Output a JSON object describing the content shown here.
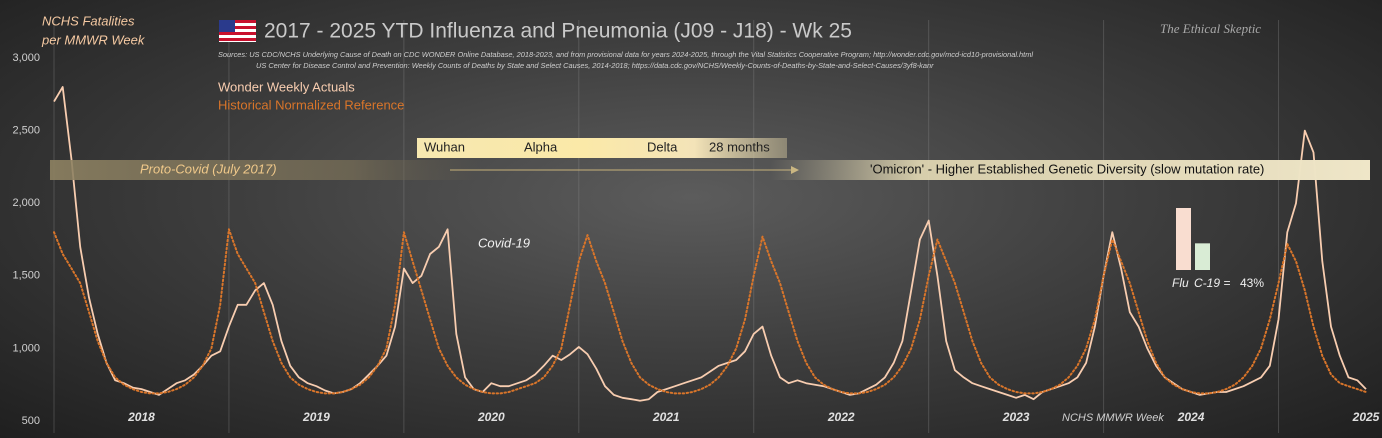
{
  "chart_data": [
    {
      "type": "line",
      "title": "2017 - 2025 YTD Influenza and Pneumonia (J09 - J18) - Wk 25",
      "subtitle": [
        "Sources:   US CDC/NCHS Underlying  Cause of Death on CDC WONDER Online Database, 2018-2023, and from provisional data for years 2024-2025, through the Vital Statistics Cooperative Program; http://wonder.cdc.gov/mcd-icd10-provisional.html",
        "US Center for Disease Control and Prevention:  Weekly  Counts of Deaths by State and Select Causes, 2014-2018; https://data.cdc.gov/NCHS/Weekly-Counts-of-Deaths-by-State-and-Select-Causes/3yf8-kanr"
      ],
      "ylabel": [
        "NCHS Fatalities",
        "per MMWR Week"
      ],
      "xlabel": "NCHS MMWR Week",
      "watermark": "The Ethical Skeptic",
      "annotations": [
        "Proto-Covid (July 2017)",
        "Wuhan",
        "Alpha",
        "Delta",
        "28 months",
        "'Omicron' - Higher Established Genetic Diversity (slow mutation rate)",
        "Covid-19"
      ],
      "x": [
        2018,
        2018.05,
        2018.1,
        2018.15,
        2018.2,
        2018.25,
        2018.3,
        2018.35,
        2018.4,
        2018.45,
        2018.5,
        2018.55,
        2018.6,
        2018.65,
        2018.7,
        2018.75,
        2018.8,
        2018.85,
        2018.9,
        2018.95,
        2019,
        2019.05,
        2019.1,
        2019.15,
        2019.2,
        2019.25,
        2019.3,
        2019.35,
        2019.4,
        2019.45,
        2019.5,
        2019.55,
        2019.6,
        2019.65,
        2019.7,
        2019.75,
        2019.8,
        2019.85,
        2019.9,
        2019.95,
        2020,
        2020.05,
        2020.1,
        2020.15,
        2020.2,
        2020.25,
        2020.3,
        2020.35,
        2020.4,
        2020.45,
        2020.5,
        2020.55,
        2020.6,
        2020.65,
        2020.7,
        2020.75,
        2020.8,
        2020.85,
        2020.9,
        2020.95,
        2021,
        2021.05,
        2021.1,
        2021.15,
        2021.2,
        2021.25,
        2021.3,
        2021.35,
        2021.4,
        2021.45,
        2021.5,
        2021.55,
        2021.6,
        2021.65,
        2021.7,
        2021.75,
        2021.8,
        2021.85,
        2021.9,
        2021.95,
        2022,
        2022.05,
        2022.1,
        2022.15,
        2022.2,
        2022.25,
        2022.3,
        2022.35,
        2022.4,
        2022.45,
        2022.5,
        2022.55,
        2022.6,
        2022.65,
        2022.7,
        2022.75,
        2022.8,
        2022.85,
        2022.9,
        2022.95,
        2023,
        2023.05,
        2023.1,
        2023.15,
        2023.2,
        2023.25,
        2023.3,
        2023.35,
        2023.4,
        2023.45,
        2023.5,
        2023.55,
        2023.6,
        2023.65,
        2023.7,
        2023.75,
        2023.8,
        2023.85,
        2023.9,
        2023.95,
        2024,
        2024.05,
        2024.1,
        2024.15,
        2024.2,
        2024.25,
        2024.3,
        2024.35,
        2024.4,
        2024.45,
        2024.5,
        2024.55,
        2024.6,
        2024.65,
        2024.7,
        2024.75,
        2024.8,
        2024.85,
        2024.9,
        2024.95,
        2025,
        2025.05,
        2025.1,
        2025.15,
        2025.2,
        2025.25,
        2025.3,
        2025.35,
        2025.4,
        2025.45,
        2025.5
      ],
      "series": [
        {
          "name": "Wonder Weekly Actuals",
          "color": "#f8cdb0",
          "style": "solid",
          "values": [
            2700,
            2800,
            2300,
            1700,
            1350,
            1100,
            900,
            780,
            760,
            730,
            720,
            700,
            680,
            720,
            760,
            780,
            820,
            880,
            950,
            980,
            1150,
            1300,
            1300,
            1400,
            1450,
            1300,
            1050,
            880,
            800,
            760,
            740,
            710,
            690,
            700,
            720,
            760,
            820,
            880,
            950,
            1150,
            1550,
            1450,
            1500,
            1650,
            1700,
            1820,
            1100,
            800,
            720,
            700,
            760,
            740,
            740,
            760,
            780,
            820,
            880,
            950,
            920,
            960,
            1010,
            960,
            860,
            740,
            680,
            660,
            650,
            640,
            650,
            700,
            720,
            740,
            760,
            780,
            800,
            840,
            880,
            900,
            920,
            980,
            1100,
            1150,
            950,
            800,
            760,
            780,
            760,
            750,
            740,
            720,
            700,
            680,
            690,
            720,
            750,
            800,
            900,
            1050,
            1400,
            1750,
            1880,
            1500,
            1050,
            850,
            800,
            760,
            740,
            720,
            700,
            680,
            660,
            680,
            650,
            700,
            720,
            740,
            760,
            800,
            900,
            1150,
            1500,
            1800,
            1550,
            1250,
            1150,
            1000,
            880,
            800,
            760,
            720,
            700,
            680,
            690,
            700,
            700,
            720,
            740,
            770,
            800,
            880,
            1200,
            1800,
            2000,
            2500,
            2350,
            1600,
            1150,
            950,
            800,
            780,
            720
          ]
        },
        {
          "name": "Historical Normalized Reference",
          "color": "#d9752a",
          "style": "dotted",
          "values": [
            1800,
            1650,
            1550,
            1450,
            1250,
            1050,
            900,
            800,
            750,
            720,
            700,
            690,
            690,
            700,
            720,
            750,
            800,
            880,
            1000,
            1300,
            1820,
            1650,
            1550,
            1450,
            1250,
            1050,
            900,
            800,
            750,
            720,
            700,
            690,
            690,
            700,
            720,
            750,
            800,
            880,
            1000,
            1300,
            1800,
            1600,
            1400,
            1200,
            1000,
            880,
            800,
            750,
            720,
            700,
            690,
            690,
            700,
            720,
            740,
            760,
            800,
            880,
            1000,
            1300,
            1600,
            1780,
            1600,
            1450,
            1250,
            1050,
            900,
            800,
            750,
            720,
            700,
            690,
            690,
            700,
            720,
            750,
            800,
            880,
            1000,
            1200,
            1500,
            1770,
            1600,
            1450,
            1250,
            1050,
            900,
            800,
            750,
            720,
            700,
            690,
            690,
            700,
            720,
            750,
            800,
            880,
            1000,
            1200,
            1500,
            1750,
            1600,
            1450,
            1250,
            1050,
            900,
            800,
            750,
            720,
            700,
            690,
            690,
            700,
            720,
            750,
            800,
            880,
            1000,
            1200,
            1500,
            1750,
            1600,
            1450,
            1250,
            1050,
            900,
            800,
            750,
            720,
            700,
            690,
            690,
            700,
            720,
            750,
            800,
            880,
            1000,
            1200,
            1450,
            1720,
            1600,
            1400,
            1150,
            950,
            820,
            760,
            740,
            720,
            700
          ]
        }
      ],
      "xlim": [
        2018,
        2025.5
      ],
      "xticks": [
        {
          "value": 2018,
          "label": "2018"
        },
        {
          "value": 2019,
          "label": "2019"
        },
        {
          "value": 2020,
          "label": "2020"
        },
        {
          "value": 2021,
          "label": "2021"
        },
        {
          "value": 2022,
          "label": "2022"
        },
        {
          "value": 2023,
          "label": "2023"
        },
        {
          "value": 2024,
          "label": "2024"
        },
        {
          "value": 2025,
          "label": "2025"
        }
      ],
      "ylim": [
        500,
        3000
      ],
      "yticks": [
        500,
        {
          "value": 1000,
          "label": "1,000"
        },
        {
          "value": 1500,
          "label": "1,500"
        },
        {
          "value": 2000,
          "label": "2,000"
        },
        {
          "value": 2500,
          "label": "2,500"
        },
        {
          "value": 3000,
          "label": "3,000"
        }
      ],
      "xgrid": true,
      "ygrid": false
    },
    {
      "type": "bar",
      "categories": [
        "Flu",
        "C-19 ="
      ],
      "values": [
        100,
        43
      ],
      "value_labels": [
        null,
        "43%"
      ],
      "colors": [
        "#f9ddd0",
        "#d9ecd5"
      ],
      "ylim": [
        0,
        100
      ]
    }
  ]
}
